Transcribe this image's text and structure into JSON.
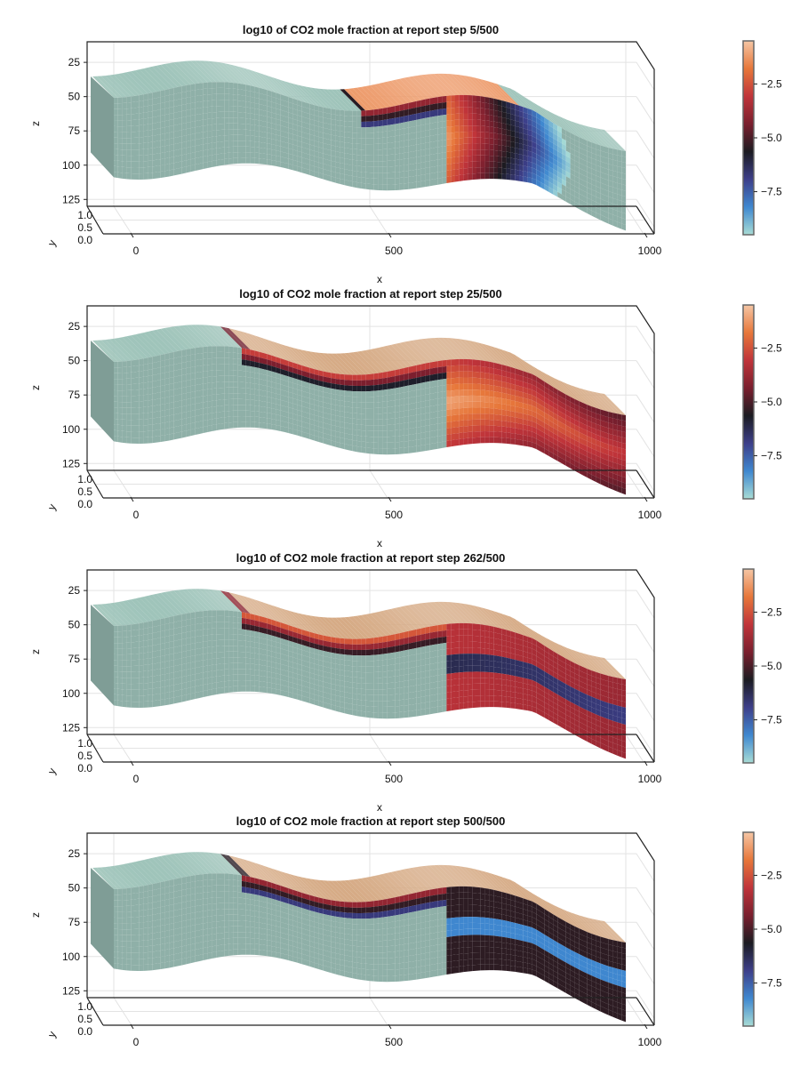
{
  "chart_data": [
    {
      "type": "heatmap",
      "subtype": "3d-surface",
      "title": "log10 of CO2 mole fraction at report step 5/500",
      "report_step": 5,
      "total_steps": 500,
      "xlabel": "x",
      "ylabel": "y",
      "zlabel": "z",
      "xticks": [
        "0",
        "500",
        "1000"
      ],
      "yticks": [
        "1.0",
        "0.5",
        "0.0"
      ],
      "zticks": [
        "25",
        "50",
        "75",
        "100",
        "125"
      ],
      "xlim": [
        0,
        1000
      ],
      "ylim": [
        0,
        1
      ],
      "zlim": [
        10,
        130
      ],
      "z_reversed": true,
      "colorbar": {
        "ticks": [
          "-2.5",
          "-5.0",
          "-7.5"
        ],
        "range": [
          -9.5,
          -0.5
        ]
      },
      "plume": {
        "top_extent_x": [
          480,
          790
        ],
        "front_extent_x": [
          650,
          890
        ],
        "front_depth_z": [
          55,
          120
        ],
        "core_value": -1.2,
        "fringe_value": -7.5,
        "background_value": -9.5
      }
    },
    {
      "type": "heatmap",
      "subtype": "3d-surface",
      "title": "log10 of CO2 mole fraction at report step 25/500",
      "report_step": 25,
      "total_steps": 500,
      "xlabel": "x",
      "ylabel": "y",
      "zlabel": "z",
      "xticks": [
        "0",
        "500",
        "1000"
      ],
      "yticks": [
        "1.0",
        "0.5",
        "0.0"
      ],
      "zticks": [
        "25",
        "50",
        "75",
        "100",
        "125"
      ],
      "xlim": [
        0,
        1000
      ],
      "ylim": [
        0,
        1
      ],
      "zlim": [
        10,
        130
      ],
      "z_reversed": true,
      "colorbar": {
        "ticks": [
          "-2.5",
          "-5.0",
          "-7.5"
        ],
        "range": [
          -9.5,
          -0.5
        ]
      },
      "plume": {
        "top_extent_x": [
          250,
          1000
        ],
        "front_extent_x": [
          650,
          1000
        ],
        "front_depth_z": [
          50,
          125
        ],
        "core_value": -1.0,
        "fringe_value": -6.5,
        "background_value": -9.5
      }
    },
    {
      "type": "heatmap",
      "subtype": "3d-surface",
      "title": "log10 of CO2 mole fraction at report step 262/500",
      "report_step": 262,
      "total_steps": 500,
      "xlabel": "x",
      "ylabel": "y",
      "zlabel": "z",
      "xticks": [
        "0",
        "500",
        "1000"
      ],
      "yticks": [
        "1.0",
        "0.5",
        "0.0"
      ],
      "zticks": [
        "25",
        "50",
        "75",
        "100",
        "125"
      ],
      "xlim": [
        0,
        1000
      ],
      "ylim": [
        0,
        1
      ],
      "zlim": [
        10,
        130
      ],
      "z_reversed": true,
      "colorbar": {
        "ticks": [
          "-2.5",
          "-5.0",
          "-7.5"
        ],
        "range": [
          -9.5,
          -0.5
        ]
      },
      "plume": {
        "top_extent_x": [
          250,
          1000
        ],
        "front_extent_x": [
          650,
          1000
        ],
        "front_depth_z": [
          50,
          125
        ],
        "core_value": -3.0,
        "fringe_value": -6.0,
        "background_value": -9.5
      }
    },
    {
      "type": "heatmap",
      "subtype": "3d-surface",
      "title": "log10 of CO2 mole fraction at report step 500/500",
      "report_step": 500,
      "total_steps": 500,
      "xlabel": "x",
      "ylabel": "y",
      "zlabel": "z",
      "xticks": [
        "0",
        "500",
        "1000"
      ],
      "yticks": [
        "1.0",
        "0.5",
        "0.0"
      ],
      "zticks": [
        "25",
        "50",
        "75",
        "100",
        "125"
      ],
      "xlim": [
        0,
        1000
      ],
      "ylim": [
        0,
        1
      ],
      "zlim": [
        10,
        130
      ],
      "z_reversed": true,
      "colorbar": {
        "ticks": [
          "-2.5",
          "-5.0",
          "-7.5"
        ],
        "range": [
          -9.5,
          -0.5
        ]
      },
      "plume": {
        "top_extent_x": [
          250,
          1000
        ],
        "front_extent_x": [
          650,
          1000
        ],
        "front_depth_z": [
          50,
          125
        ],
        "core_value": -5.0,
        "fringe_value": -7.5,
        "background_value": -9.5
      }
    }
  ],
  "colors": {
    "background_cell": "#8fb0a8",
    "top_face_light": "#9fc4ba",
    "side_face": "#7f9d96",
    "saturated_top": "#d6ab86",
    "colormap": [
      "#a8dcd5",
      "#3f88d0",
      "#3d3f8a",
      "#1b1b21",
      "#7a1f2e",
      "#c0343a",
      "#e7773a",
      "#f5c6a5"
    ]
  }
}
